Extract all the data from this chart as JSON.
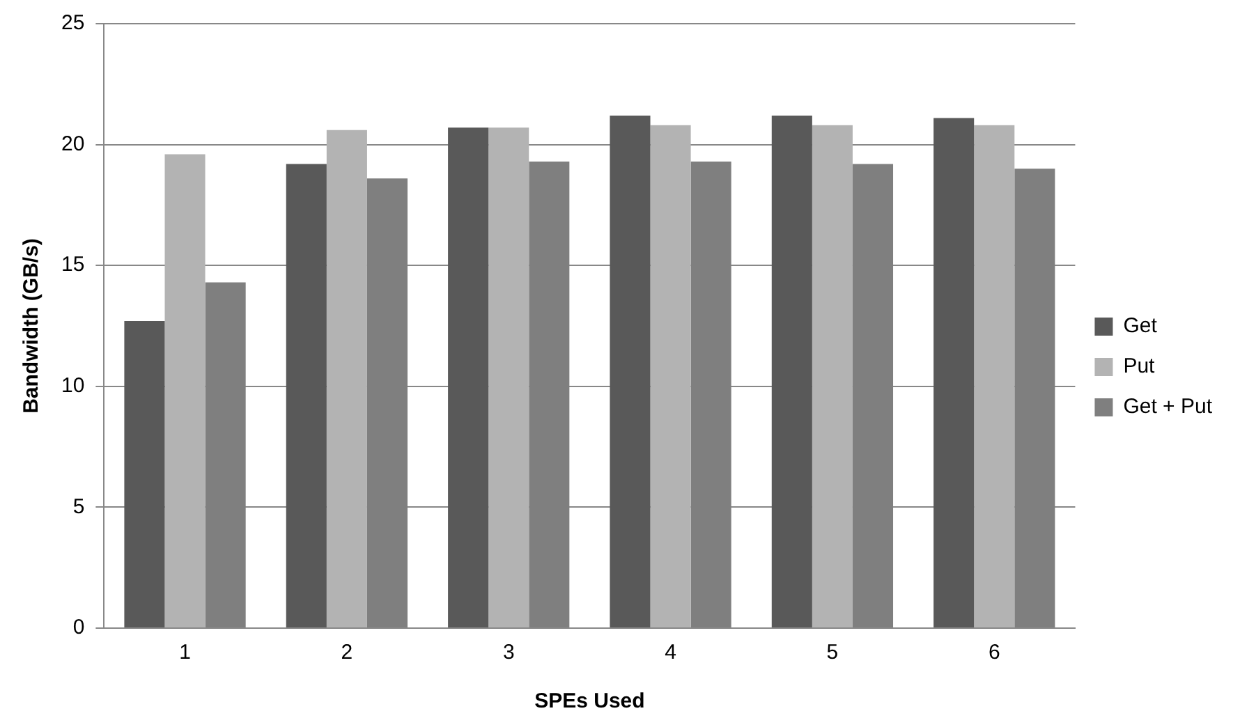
{
  "chart_data": {
    "type": "bar",
    "xlabel": "SPEs Used",
    "ylabel": "Bandwidth (GB/s)",
    "categories": [
      "1",
      "2",
      "3",
      "4",
      "5",
      "6"
    ],
    "series": [
      {
        "name": "Get",
        "color": "#595959",
        "values": [
          12.7,
          19.2,
          20.7,
          21.2,
          21.2,
          21.1
        ]
      },
      {
        "name": "Put",
        "color": "#b3b3b3",
        "values": [
          19.6,
          20.6,
          20.7,
          20.8,
          20.8,
          20.8
        ]
      },
      {
        "name": "Get + Put",
        "color": "#7f7f7f",
        "values": [
          14.3,
          18.6,
          19.3,
          19.3,
          19.2,
          19.0
        ]
      }
    ],
    "ylim": [
      0,
      25
    ],
    "yticks": [
      0,
      5,
      10,
      15,
      20,
      25
    ],
    "grid": "y",
    "legend": "right"
  }
}
